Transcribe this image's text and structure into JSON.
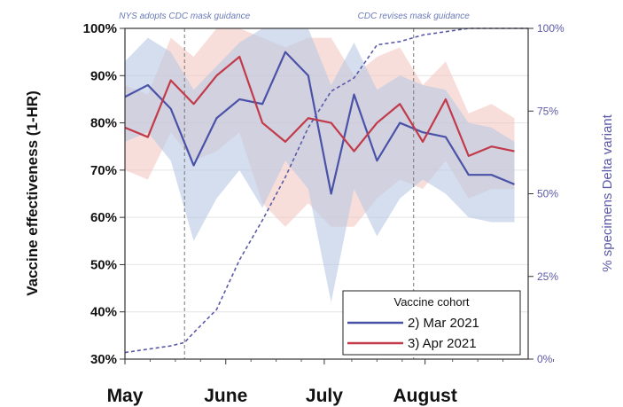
{
  "chart_data": {
    "type": "line",
    "title": "",
    "xlabel": "",
    "ylabel": "Vaccine effectiveness (1-HR)",
    "y2label": "% specimens Delta variant",
    "xlim": [
      0,
      17.6
    ],
    "ylim": [
      30,
      100
    ],
    "y2lim": [
      0,
      100
    ],
    "x_ticks": [
      {
        "label": "May",
        "x": 0
      },
      {
        "label": "June",
        "x": 4.4
      },
      {
        "label": "July",
        "x": 8.7
      },
      {
        "label": "August",
        "x": 13.1
      }
    ],
    "y_ticks": [
      "30%",
      "40%",
      "50%",
      "60%",
      "70%",
      "80%",
      "90%",
      "100%"
    ],
    "y_tick_values": [
      30,
      40,
      50,
      60,
      70,
      80,
      90,
      100
    ],
    "y2_ticks": [
      "0%",
      "25%",
      "50%",
      "75%",
      "100%"
    ],
    "y2_tick_values": [
      0,
      25,
      50,
      75,
      100
    ],
    "annotations": [
      {
        "text": "NYS adopts CDC mask guidance",
        "x": 2.6
      },
      {
        "text": "CDC revises mask guidance",
        "x": 12.6
      }
    ],
    "legend": {
      "title": "Vaccine cohort",
      "position": "bottom-right",
      "entries": [
        {
          "label": "2) Mar 2021",
          "color": "#4a52a8"
        },
        {
          "label": "3) Apr 2021",
          "color": "#c23a4a"
        }
      ]
    },
    "series": [
      {
        "name": "2) Mar 2021",
        "color": "#4a52a8",
        "band_color": "#b8c8e2",
        "x": [
          0,
          1,
          2,
          3,
          4,
          5,
          6,
          7,
          8,
          9,
          10,
          11,
          12,
          13,
          14,
          15,
          16,
          17
        ],
        "values": [
          85.5,
          88,
          83,
          71,
          81,
          85,
          84,
          95,
          90,
          65,
          86,
          72,
          80,
          78,
          77,
          69,
          69,
          67
        ],
        "lower": [
          76,
          78,
          72,
          55,
          64,
          70,
          62,
          72,
          66,
          42,
          66,
          56,
          64,
          68,
          65,
          60,
          59,
          59
        ],
        "upper": [
          93,
          98,
          95,
          87,
          92,
          97,
          100,
          100,
          100,
          88,
          97,
          87,
          90,
          88,
          87,
          80,
          79,
          76
        ]
      },
      {
        "name": "3) Apr 2021",
        "color": "#c23a4a",
        "band_color": "#f4c8c2",
        "x": [
          0,
          1,
          2,
          3,
          4,
          5,
          6,
          7,
          8,
          9,
          10,
          11,
          12,
          13,
          14,
          15,
          16,
          17
        ],
        "values": [
          79,
          77,
          89,
          84,
          90,
          94,
          80,
          76,
          81,
          80,
          74,
          80,
          84,
          76,
          85,
          73,
          75,
          74
        ],
        "lower": [
          70,
          68,
          78,
          72,
          74,
          78,
          63,
          58,
          63,
          58,
          58,
          64,
          68,
          66,
          72,
          64,
          66,
          66
        ],
        "upper": [
          88,
          86,
          98,
          94,
          100,
          100,
          98,
          96,
          98,
          98,
          90,
          94,
          96,
          88,
          93,
          82,
          84,
          81
        ]
      },
      {
        "name": "% specimens Delta variant",
        "axis": "y2",
        "style": "dashed",
        "color": "#5a5aa8",
        "x": [
          0,
          1,
          2,
          2.6,
          3,
          4,
          5,
          6,
          7,
          8,
          9,
          10,
          11,
          12,
          13,
          14,
          15,
          16,
          17,
          17.6
        ],
        "values": [
          2,
          3,
          4,
          5,
          8,
          15,
          30,
          42,
          55,
          70,
          81,
          85,
          95,
          96,
          98,
          99,
          100,
          100,
          100,
          100
        ]
      }
    ]
  }
}
